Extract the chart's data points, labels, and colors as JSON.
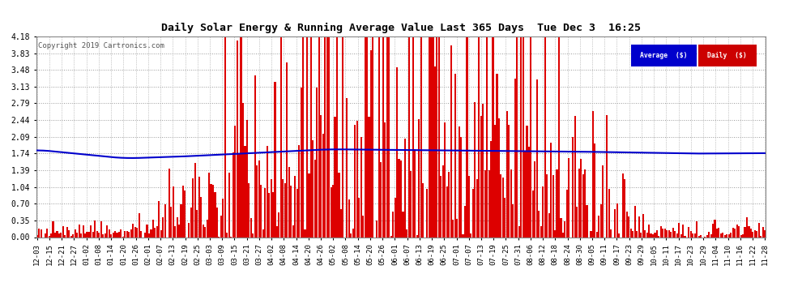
{
  "title": "Daily Solar Energy & Running Average Value Last 365 Days  Tue Dec 3  16:25",
  "copyright": "Copyright 2019 Cartronics.com",
  "background_color": "#ffffff",
  "plot_bg_color": "#ffffff",
  "bar_color": "#dd0000",
  "line_color": "#0000cc",
  "ylim": [
    0.0,
    4.18
  ],
  "yticks": [
    0.0,
    0.35,
    0.7,
    1.04,
    1.39,
    1.74,
    2.09,
    2.44,
    2.79,
    3.13,
    3.48,
    3.83,
    4.18
  ],
  "legend_avg_color": "#0000cc",
  "legend_daily_color": "#cc0000",
  "legend_text_color": "#ffffff",
  "n_bars": 365,
  "x_tick_labels": [
    "12-03",
    "12-15",
    "12-21",
    "12-27",
    "01-02",
    "01-08",
    "01-14",
    "01-20",
    "01-26",
    "02-01",
    "02-07",
    "02-13",
    "02-19",
    "02-25",
    "03-03",
    "03-09",
    "03-15",
    "03-21",
    "03-27",
    "04-02",
    "04-08",
    "04-14",
    "04-20",
    "04-26",
    "05-02",
    "05-08",
    "05-14",
    "05-20",
    "05-26",
    "06-01",
    "06-07",
    "06-13",
    "06-19",
    "06-25",
    "07-01",
    "07-07",
    "07-13",
    "07-19",
    "07-25",
    "07-31",
    "08-06",
    "08-12",
    "08-18",
    "08-24",
    "08-30",
    "09-05",
    "09-11",
    "09-17",
    "09-23",
    "09-29",
    "10-05",
    "10-11",
    "10-17",
    "10-23",
    "10-29",
    "11-04",
    "11-10",
    "11-16",
    "11-22",
    "11-28"
  ],
  "figsize": [
    9.9,
    3.75
  ],
  "dpi": 100
}
